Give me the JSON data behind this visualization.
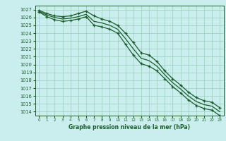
{
  "xlabel": "Graphe pression niveau de la mer (hPa)",
  "bg_color": "#caeeed",
  "grid_color": "#99ccbb",
  "line_color": "#1a5c2a",
  "x": [
    0,
    1,
    2,
    3,
    4,
    5,
    6,
    7,
    8,
    9,
    10,
    11,
    12,
    13,
    14,
    15,
    16,
    17,
    18,
    19,
    20,
    21,
    22,
    23
  ],
  "y_top": [
    1026.9,
    1026.5,
    1026.2,
    1026.1,
    1026.2,
    1026.5,
    1026.8,
    1026.2,
    1025.8,
    1025.5,
    1025.0,
    1024.0,
    1022.8,
    1021.5,
    1021.2,
    1020.4,
    1019.2,
    1018.2,
    1017.4,
    1016.5,
    1015.8,
    1015.4,
    1015.2,
    1014.5
  ],
  "y_mid": [
    1026.8,
    1026.3,
    1026.0,
    1025.8,
    1025.9,
    1026.1,
    1026.4,
    1025.5,
    1025.3,
    1025.0,
    1024.5,
    1023.3,
    1022.0,
    1020.8,
    1020.5,
    1019.8,
    1018.7,
    1017.7,
    1016.9,
    1016.0,
    1015.3,
    1014.9,
    1014.7,
    1014.0
  ],
  "y_bot": [
    1026.7,
    1026.1,
    1025.7,
    1025.5,
    1025.6,
    1025.8,
    1026.1,
    1025.0,
    1024.8,
    1024.5,
    1024.0,
    1022.6,
    1021.2,
    1020.1,
    1019.8,
    1019.2,
    1018.2,
    1017.2,
    1016.4,
    1015.5,
    1014.8,
    1014.4,
    1014.2,
    1013.5
  ],
  "ylim": [
    1013.5,
    1027.5
  ],
  "yticks": [
    1014,
    1015,
    1016,
    1017,
    1018,
    1019,
    1020,
    1021,
    1022,
    1023,
    1024,
    1025,
    1026,
    1027
  ],
  "xticks": [
    0,
    1,
    2,
    3,
    4,
    5,
    6,
    7,
    8,
    9,
    10,
    11,
    12,
    13,
    14,
    15,
    16,
    17,
    18,
    19,
    20,
    21,
    22,
    23
  ]
}
